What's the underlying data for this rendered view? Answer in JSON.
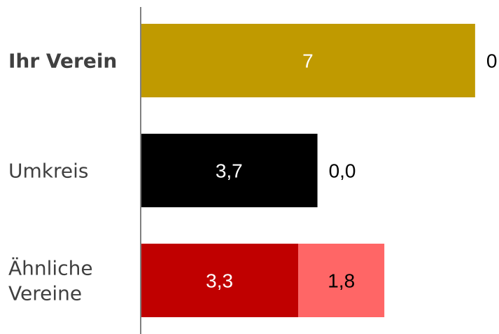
{
  "chart_data": {
    "type": "bar",
    "orientation": "horizontal",
    "stacked": true,
    "categories": [
      "Ihr Verein",
      "Umkreis",
      "Ähnliche Vereine"
    ],
    "category_label_lines": [
      [
        "Ihr Verein"
      ],
      [
        "Umkreis"
      ],
      [
        "Ähnliche",
        "Vereine"
      ]
    ],
    "series": [
      {
        "values": [
          7,
          3.7,
          3.3
        ],
        "labels": [
          "7",
          "3,7",
          "3,3"
        ],
        "colors": [
          "#c09a00",
          "#000000",
          "#c00000"
        ],
        "label_color": "#ffffff"
      },
      {
        "values": [
          0,
          0,
          1.8
        ],
        "labels": [
          "0",
          "0,0",
          "1,8"
        ],
        "colors": [
          "#ffd966",
          "#7f7f7f",
          "#ff6666"
        ],
        "label_color": "#000000"
      }
    ],
    "xlim": [
      0,
      7.5
    ],
    "grid": false,
    "legend": "none"
  },
  "colors": {
    "axis": "#808080",
    "category_text": "#404040"
  }
}
